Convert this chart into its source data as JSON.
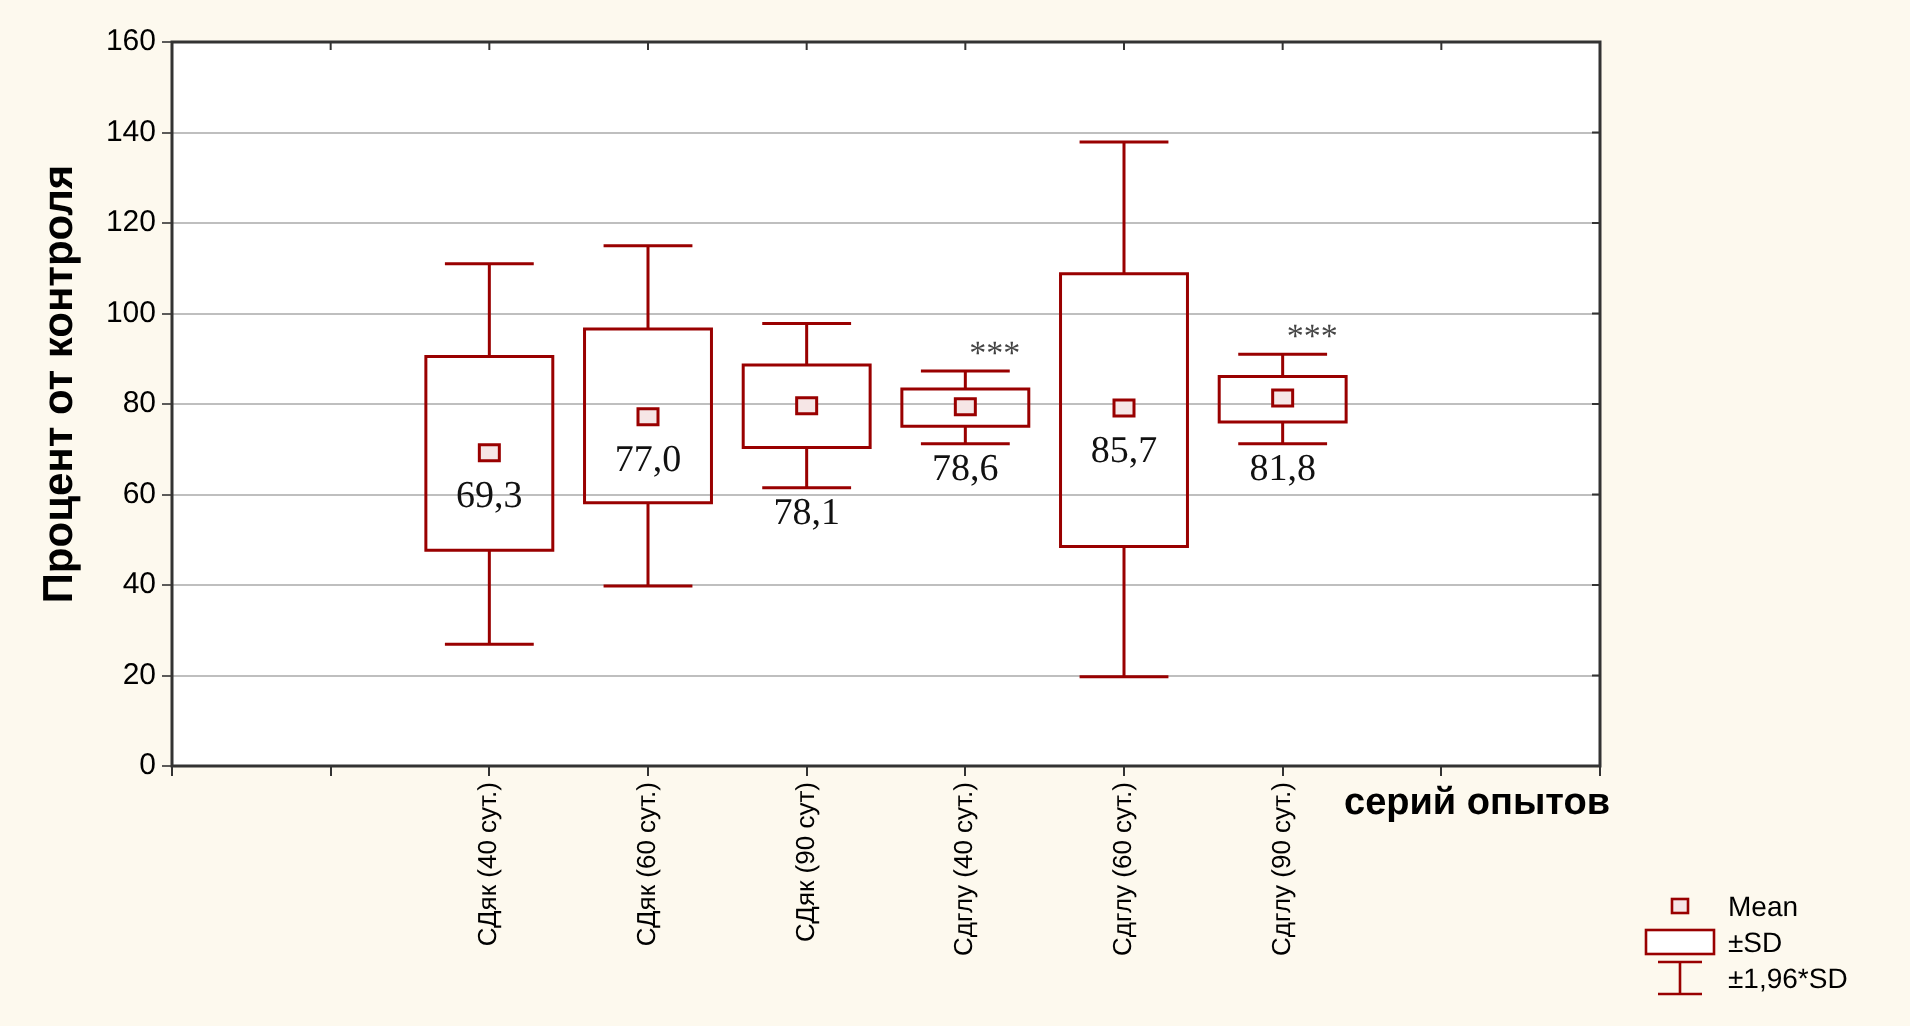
{
  "chart_data": {
    "type": "box",
    "ylabel": "Процент от контроля",
    "xlabel": "серий опытов",
    "categories": [
      null,
      null,
      "СДяк (40 сут.)",
      "СДяк (60 сут.)",
      "СДяк (90 сут)",
      "Сдглу (40 сут.)",
      "Сдглу (60 сут.)",
      "Сдглу (90 сут.)",
      null,
      null
    ],
    "color": "#990000",
    "boxes": [
      null,
      null,
      {
        "low": 26.9,
        "q1": 47.7,
        "q3": 90.5,
        "high": 111.0,
        "mean": 69.2
      },
      {
        "low": 39.8,
        "q1": 58.2,
        "q3": 96.6,
        "high": 115.0,
        "mean": 77.2
      },
      {
        "low": 61.5,
        "q1": 70.4,
        "q3": 88.6,
        "high": 97.8,
        "mean": 79.6
      },
      {
        "low": 71.2,
        "q1": 75.1,
        "q3": 83.3,
        "high": 87.3,
        "mean": 79.4
      },
      {
        "low": 19.7,
        "q1": 48.5,
        "q3": 108.8,
        "high": 137.9,
        "mean": 79.1
      },
      {
        "low": 71.2,
        "q1": 76.0,
        "q3": 86.1,
        "high": 91.0,
        "mean": 81.3
      },
      null,
      null
    ],
    "ylim": [
      0,
      160
    ],
    "yticks": [
      0,
      20,
      40,
      60,
      80,
      100,
      120,
      140,
      160
    ],
    "grid": "y",
    "annotations": [
      "69,3",
      "77,0",
      "78,1",
      "78,6",
      "85,7",
      "81,8",
      {
        "text": "***",
        "x": "Сдглу (40 сут.)",
        "y": 87.3
      },
      {
        "text": "***",
        "x": "Сдглу (90 сут.)",
        "y": 91.0
      },
      "Mean",
      "±SD",
      "±1,96*SD"
    ]
  }
}
